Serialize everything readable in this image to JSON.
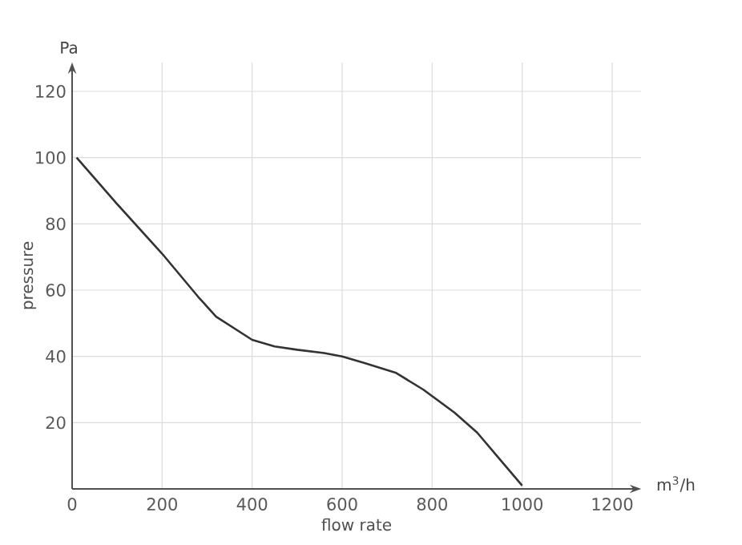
{
  "chart_data": {
    "type": "line",
    "xlabel": "flow rate",
    "ylabel": "pressure",
    "annotations": [
      "Pa",
      "m$^{3}$/h"
    ],
    "xlim": [
      0,
      1200
    ],
    "ylim": [
      0,
      120
    ],
    "xticks": [
      0,
      200,
      400,
      600,
      800,
      1000,
      1200
    ],
    "yticks": [
      {
        "value": 0,
        "label": null
      },
      20,
      40,
      60,
      80,
      100,
      120
    ],
    "grid": true,
    "marker": "none",
    "line_style": "solid",
    "series": [
      {
        "color": "#333333",
        "x": [
          10,
          100,
          200,
          280,
          320,
          400,
          450,
          500,
          560,
          600,
          650,
          720,
          780,
          850,
          900,
          950,
          1000
        ],
        "values": [
          100,
          86,
          71,
          58,
          52,
          45,
          43,
          42,
          41,
          40,
          38,
          35,
          30,
          23,
          17,
          9,
          1
        ]
      }
    ]
  }
}
